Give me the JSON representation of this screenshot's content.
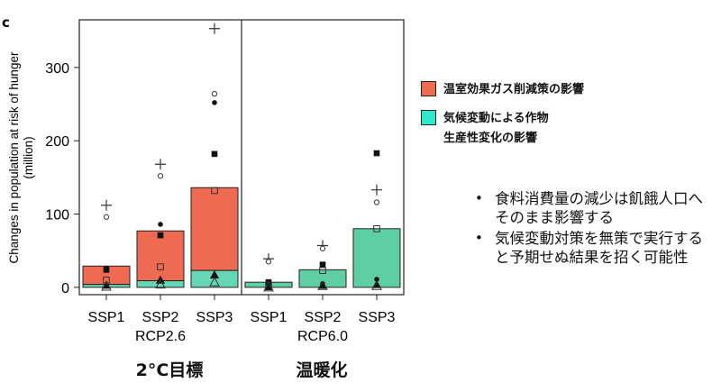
{
  "panel_label": "c",
  "legend": {
    "items": [
      {
        "label": "温室効果ガス削減策の影響",
        "color": "#ee6a50"
      },
      {
        "label": "気候変動による作物\n生産性変化の影響",
        "color": "#2ee8cc"
      }
    ]
  },
  "bullets": [
    "食料消費量の減少は飢餓人口へそのまま影響する",
    "気候変動対策を無策で実行すると予期せぬ結果を招く可能性"
  ],
  "category_labels": [
    {
      "label": "2°C目標",
      "group": "RCP2.6"
    },
    {
      "label": "温暖化",
      "group": "RCP6.0"
    }
  ],
  "chart_data": {
    "type": "bar",
    "ylabel": "Changes in population at risk of hunger (million)",
    "ylim": [
      -10,
      365
    ],
    "yticks": [
      0,
      100,
      200,
      300
    ],
    "groups": [
      "RCP2.6",
      "RCP6.0"
    ],
    "categories": [
      "SSP1",
      "SSP2",
      "SSP3"
    ],
    "colors": {
      "mitigation": "#ee6a50",
      "climate_rcp26": "#67d6b5",
      "climate_rcp60": "#5ecfa5"
    },
    "panels": [
      {
        "group": "RCP2.6",
        "bars": [
          {
            "category": "SSP1",
            "climate": 4,
            "total": 29,
            "points": {
              "plus": 112,
              "circle_open": 96,
              "circle_filled": 26,
              "square_filled": 24,
              "square_open": 10,
              "triangle_filled": 3,
              "triangle_open": 1
            }
          },
          {
            "category": "SSP2",
            "climate": 9,
            "total": 77,
            "points": {
              "plus": 168,
              "circle_open": 152,
              "circle_filled": 86,
              "square_filled": 71,
              "square_open": 28,
              "triangle_filled": 10,
              "triangle_open": 4
            }
          },
          {
            "category": "SSP3",
            "climate": 23,
            "total": 136,
            "points": {
              "plus": 353,
              "circle_open": 264,
              "circle_filled": 252,
              "square_filled": 182,
              "square_open": 132,
              "triangle_filled": 17,
              "triangle_open": 7
            }
          }
        ]
      },
      {
        "group": "RCP6.0",
        "bars": [
          {
            "category": "SSP1",
            "climate": 7,
            "total": 7,
            "points": {
              "plus": 39,
              "circle_open": 35,
              "circle_filled": 4,
              "square_filled": 7,
              "square_open": 3,
              "triangle_filled": 1,
              "triangle_open": 0
            }
          },
          {
            "category": "SSP2",
            "climate": 24,
            "total": 24,
            "points": {
              "plus": 57,
              "circle_open": 53,
              "circle_filled": 5,
              "square_filled": 31,
              "square_open": 23,
              "triangle_filled": 3,
              "triangle_open": 2
            }
          },
          {
            "category": "SSP3",
            "climate": 80,
            "total": 80,
            "points": {
              "plus": 133,
              "circle_open": 116,
              "circle_filled": 11,
              "square_filled": 183,
              "square_open": 80,
              "triangle_filled": 4,
              "triangle_open": 2
            }
          }
        ]
      }
    ]
  }
}
